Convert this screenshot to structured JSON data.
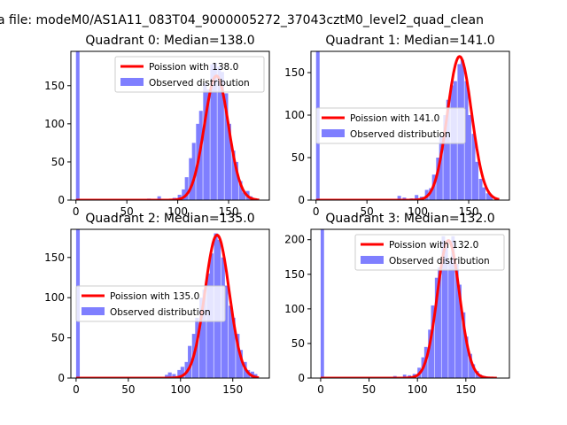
{
  "suptitle": "a file: modeM0/AS1A11_083T04_9000005272_37043cztM0_level2_quad_clean",
  "colors": {
    "fit": "#ff0000",
    "hist": "#7f7fff",
    "axes": "#000000",
    "background": "#ffffff"
  },
  "chart_data": [
    {
      "type": "bar",
      "title": "Quadrant 0: Median=138.0",
      "xlabel": "",
      "ylabel": "",
      "xlim": [
        -5,
        190
      ],
      "ylim": [
        0,
        195
      ],
      "xticks": [
        0,
        50,
        100,
        150
      ],
      "yticks": [
        0,
        50,
        100,
        150
      ],
      "legend_position": "upper-right",
      "series": [
        {
          "name": "Poission with 138.0",
          "kind": "line",
          "mean": 138.0,
          "peak": 163,
          "sigma": 11.75,
          "x_range": [
            0,
            180
          ]
        },
        {
          "name": "Observed distribution",
          "kind": "histogram",
          "bin_width": 3.5,
          "bins": [
            [
              0,
              195
            ],
            [
              70,
              2
            ],
            [
              80,
              5
            ],
            [
              95,
              3
            ],
            [
              100,
              7
            ],
            [
              104,
              14
            ],
            [
              107,
              30
            ],
            [
              111,
              55
            ],
            [
              114,
              75
            ],
            [
              118,
              100
            ],
            [
              121,
              117
            ],
            [
              125,
              153
            ],
            [
              128,
              145
            ],
            [
              132,
              178
            ],
            [
              135,
              180
            ],
            [
              139,
              175
            ],
            [
              142,
              168
            ],
            [
              146,
              140
            ],
            [
              149,
              100
            ],
            [
              153,
              65
            ],
            [
              156,
              50
            ],
            [
              160,
              25
            ],
            [
              163,
              10
            ],
            [
              167,
              12
            ],
            [
              170,
              5
            ]
          ]
        }
      ]
    },
    {
      "type": "bar",
      "title": "Quadrant 1: Median=141.0",
      "xlabel": "",
      "ylabel": "",
      "xlim": [
        -5,
        190
      ],
      "ylim": [
        0,
        175
      ],
      "xticks": [
        0,
        50,
        100,
        150
      ],
      "yticks": [
        0,
        50,
        100,
        150
      ],
      "legend_position": "center-left",
      "series": [
        {
          "name": "Poission with 141.0",
          "kind": "line",
          "mean": 141.0,
          "peak": 169,
          "sigma": 11.9,
          "x_range": [
            0,
            180
          ]
        },
        {
          "name": "Observed distribution",
          "kind": "histogram",
          "bin_width": 3.5,
          "bins": [
            [
              0,
              175
            ],
            [
              80,
              5
            ],
            [
              85,
              3
            ],
            [
              92,
              2
            ],
            [
              97,
              6
            ],
            [
              102,
              4
            ],
            [
              107,
              12
            ],
            [
              111,
              14
            ],
            [
              114,
              30
            ],
            [
              118,
              50
            ],
            [
              121,
              75
            ],
            [
              125,
              100
            ],
            [
              128,
              118
            ],
            [
              132,
              135
            ],
            [
              135,
              140
            ],
            [
              139,
              160
            ],
            [
              142,
              165
            ],
            [
              146,
              140
            ],
            [
              149,
              100
            ],
            [
              153,
              78
            ],
            [
              156,
              45
            ],
            [
              160,
              25
            ],
            [
              163,
              15
            ],
            [
              167,
              8
            ],
            [
              170,
              5
            ]
          ]
        }
      ]
    },
    {
      "type": "bar",
      "title": "Quadrant 2: Median=135.0",
      "xlabel": "",
      "ylabel": "",
      "xlim": [
        -5,
        185
      ],
      "ylim": [
        0,
        185
      ],
      "xticks": [
        0,
        50,
        100,
        150
      ],
      "yticks": [
        0,
        50,
        100,
        150
      ],
      "legend_position": "center-left",
      "series": [
        {
          "name": "Poission with 135.0",
          "kind": "line",
          "mean": 135.0,
          "peak": 178,
          "sigma": 11.6,
          "x_range": [
            0,
            175
          ]
        },
        {
          "name": "Observed distribution",
          "kind": "histogram",
          "bin_width": 3.5,
          "bins": [
            [
              0,
              185
            ],
            [
              85,
              4
            ],
            [
              88,
              7
            ],
            [
              92,
              5
            ],
            [
              97,
              10
            ],
            [
              100,
              14
            ],
            [
              104,
              20
            ],
            [
              107,
              40
            ],
            [
              111,
              55
            ],
            [
              114,
              75
            ],
            [
              118,
              100
            ],
            [
              121,
              110
            ],
            [
              125,
              130
            ],
            [
              128,
              155
            ],
            [
              132,
              180
            ],
            [
              135,
              172
            ],
            [
              139,
              150
            ],
            [
              142,
              115
            ],
            [
              146,
              90
            ],
            [
              149,
              75
            ],
            [
              153,
              55
            ],
            [
              156,
              35
            ],
            [
              160,
              20
            ],
            [
              163,
              10
            ],
            [
              167,
              8
            ],
            [
              170,
              5
            ]
          ]
        }
      ]
    },
    {
      "type": "bar",
      "title": "Quadrant 3: Median=132.0",
      "xlabel": "",
      "ylabel": "",
      "xlim": [
        -10,
        195
      ],
      "ylim": [
        0,
        215
      ],
      "xticks": [
        0,
        50,
        100,
        150
      ],
      "yticks": [
        0,
        50,
        100,
        150,
        200
      ],
      "legend_position": "upper-right",
      "series": [
        {
          "name": "Poission with 132.0",
          "kind": "line",
          "mean": 132.0,
          "peak": 199,
          "sigma": 11.5,
          "x_range": [
            0,
            182
          ]
        },
        {
          "name": "Observed distribution",
          "kind": "histogram",
          "bin_width": 3.5,
          "bins": [
            [
              0,
              215
            ],
            [
              75,
              3
            ],
            [
              85,
              5
            ],
            [
              90,
              4
            ],
            [
              95,
              6
            ],
            [
              100,
              15
            ],
            [
              104,
              30
            ],
            [
              107,
              45
            ],
            [
              111,
              70
            ],
            [
              114,
              105
            ],
            [
              118,
              145
            ],
            [
              121,
              160
            ],
            [
              125,
              205
            ],
            [
              128,
              190
            ],
            [
              132,
              170
            ],
            [
              135,
              205
            ],
            [
              139,
              165
            ],
            [
              142,
              135
            ],
            [
              146,
              95
            ],
            [
              149,
              60
            ],
            [
              153,
              35
            ],
            [
              156,
              20
            ],
            [
              160,
              10
            ],
            [
              163,
              5
            ],
            [
              167,
              3
            ]
          ]
        }
      ]
    }
  ]
}
